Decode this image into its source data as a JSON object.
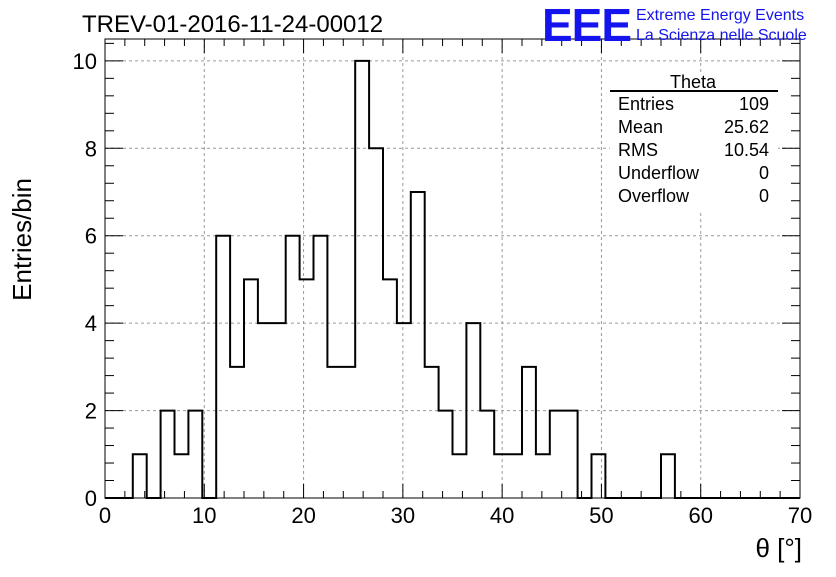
{
  "header": {
    "run_title": "TREV-01-2016-11-24-00012",
    "logo_text": "EEE",
    "logo_line1": "Extreme Energy Events",
    "logo_line2": "La Scienza nelle Scuole"
  },
  "stats_box": {
    "title": "Theta",
    "rows": [
      {
        "label": "Entries",
        "value": "109"
      },
      {
        "label": "Mean",
        "value": "25.62"
      },
      {
        "label": "RMS",
        "value": "10.54"
      },
      {
        "label": "Underflow",
        "value": "0"
      },
      {
        "label": "Overflow",
        "value": "0"
      }
    ]
  },
  "colors": {
    "logo": "#1414ee",
    "line": "#000000",
    "grid": "#9a9a9a"
  },
  "chart_data": {
    "type": "bar",
    "subtype": "histogram",
    "title": "TREV-01-2016-11-24-00012",
    "xlabel": "θ [°]",
    "ylabel": "Entries/bin",
    "xlim": [
      0,
      70
    ],
    "ylim": [
      0,
      10.5
    ],
    "bin_width": 1.4,
    "bin_edges_start": 0,
    "values": [
      0,
      0,
      1,
      0,
      2,
      1,
      2,
      0,
      6,
      3,
      5,
      4,
      4,
      6,
      5,
      6,
      3,
      3,
      10,
      8,
      5,
      4,
      7,
      3,
      2,
      1,
      4,
      2,
      1,
      1,
      3,
      1,
      2,
      2,
      0,
      1,
      0,
      0,
      0,
      0,
      1,
      0,
      0,
      0,
      0,
      0,
      0,
      0,
      0,
      0
    ],
    "x_ticks": [
      "0",
      "10",
      "20",
      "30",
      "40",
      "50",
      "60",
      "70"
    ],
    "y_ticks": [
      "0",
      "2",
      "4",
      "6",
      "8",
      "10"
    ],
    "grid": true,
    "legend": "top-right"
  }
}
